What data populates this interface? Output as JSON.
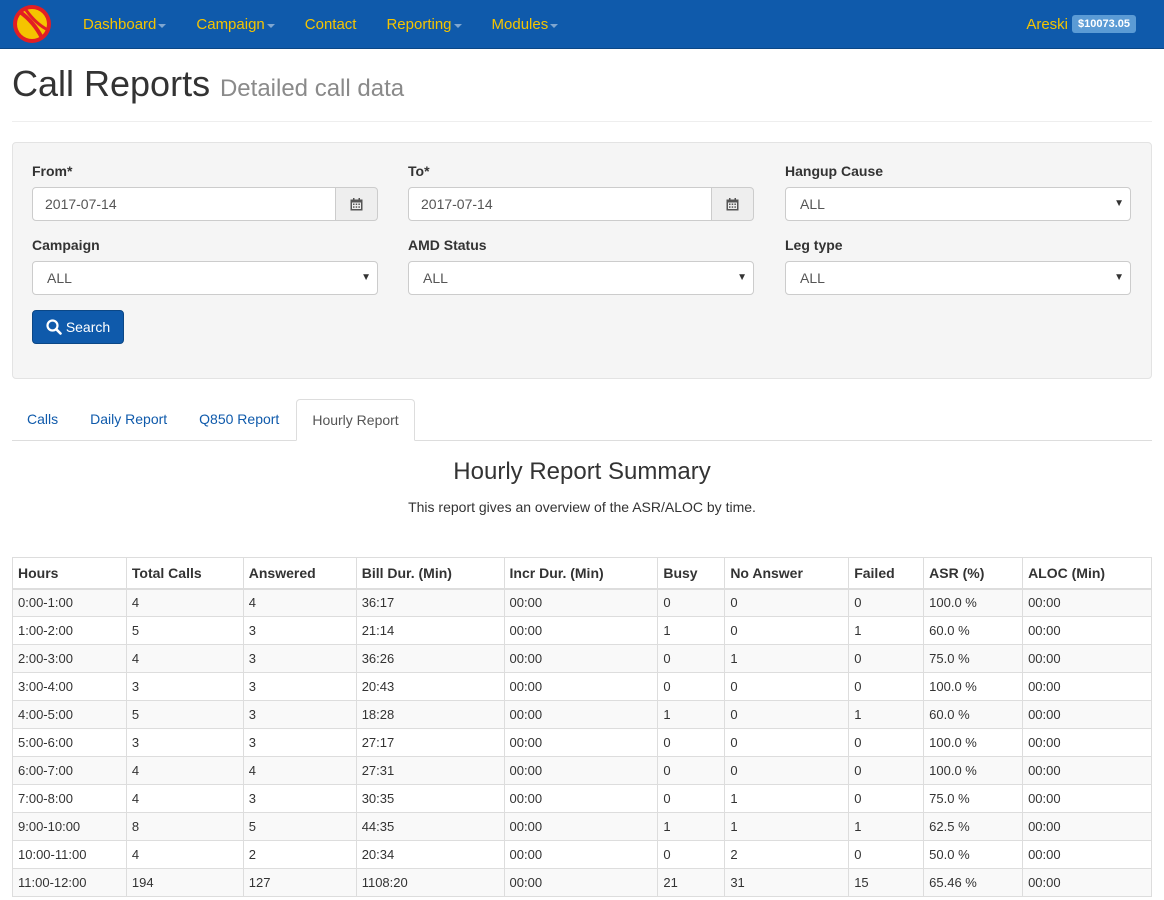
{
  "nav": {
    "items": [
      {
        "label": "Dashboard",
        "caret": true
      },
      {
        "label": "Campaign",
        "caret": true
      },
      {
        "label": "Contact",
        "caret": false
      },
      {
        "label": "Reporting",
        "caret": true
      },
      {
        "label": "Modules",
        "caret": true
      }
    ],
    "user": "Areski",
    "balance": "$10073.05"
  },
  "header": {
    "title": "Call Reports",
    "subtitle": "Detailed call data"
  },
  "filters": {
    "from_label": "From*",
    "from_value": "2017-07-14",
    "to_label": "To*",
    "to_value": "2017-07-14",
    "hangup_label": "Hangup Cause",
    "hangup_value": "ALL",
    "campaign_label": "Campaign",
    "campaign_value": "ALL",
    "amd_label": "AMD Status",
    "amd_value": "ALL",
    "leg_label": "Leg type",
    "leg_value": "ALL",
    "search_label": "Search"
  },
  "tabs": [
    "Calls",
    "Daily Report",
    "Q850 Report",
    "Hourly Report"
  ],
  "active_tab": "Hourly Report",
  "summary": {
    "title": "Hourly Report Summary",
    "description": "This report gives an overview of the ASR/ALOC by time."
  },
  "table": {
    "headers": [
      "Hours",
      "Total Calls",
      "Answered",
      "Bill Dur. (Min)",
      "Incr Dur. (Min)",
      "Busy",
      "No Answer",
      "Failed",
      "ASR (%)",
      "ALOC (Min)"
    ],
    "rows": [
      [
        "0:00-1:00",
        "4",
        "4",
        "36:17",
        "00:00",
        "0",
        "0",
        "0",
        "100.0 %",
        "00:00"
      ],
      [
        "1:00-2:00",
        "5",
        "3",
        "21:14",
        "00:00",
        "1",
        "0",
        "1",
        "60.0 %",
        "00:00"
      ],
      [
        "2:00-3:00",
        "4",
        "3",
        "36:26",
        "00:00",
        "0",
        "1",
        "0",
        "75.0 %",
        "00:00"
      ],
      [
        "3:00-4:00",
        "3",
        "3",
        "20:43",
        "00:00",
        "0",
        "0",
        "0",
        "100.0 %",
        "00:00"
      ],
      [
        "4:00-5:00",
        "5",
        "3",
        "18:28",
        "00:00",
        "1",
        "0",
        "1",
        "60.0 %",
        "00:00"
      ],
      [
        "5:00-6:00",
        "3",
        "3",
        "27:17",
        "00:00",
        "0",
        "0",
        "0",
        "100.0 %",
        "00:00"
      ],
      [
        "6:00-7:00",
        "4",
        "4",
        "27:31",
        "00:00",
        "0",
        "0",
        "0",
        "100.0 %",
        "00:00"
      ],
      [
        "7:00-8:00",
        "4",
        "3",
        "30:35",
        "00:00",
        "0",
        "1",
        "0",
        "75.0 %",
        "00:00"
      ],
      [
        "9:00-10:00",
        "8",
        "5",
        "44:35",
        "00:00",
        "1",
        "1",
        "1",
        "62.5 %",
        "00:00"
      ],
      [
        "10:00-11:00",
        "4",
        "2",
        "20:34",
        "00:00",
        "0",
        "2",
        "0",
        "50.0 %",
        "00:00"
      ],
      [
        "11:00-12:00",
        "194",
        "127",
        "1108:20",
        "00:00",
        "21",
        "31",
        "15",
        "65.46 %",
        "00:00"
      ]
    ]
  }
}
